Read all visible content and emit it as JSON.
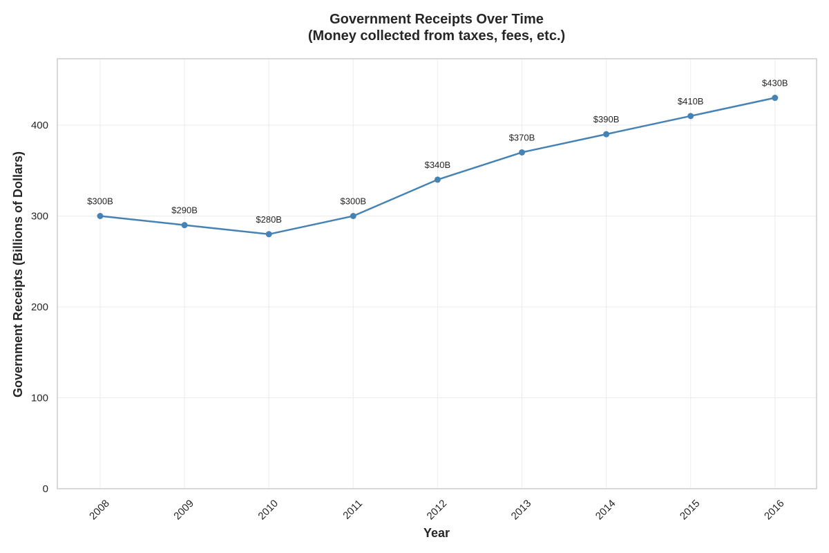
{
  "chart_data": {
    "type": "line",
    "title": "Government Receipts Over Time",
    "subtitle": "(Money collected from taxes, fees, etc.)",
    "xlabel": "Year",
    "ylabel": "Government Receipts (Billions of Dollars)",
    "categories": [
      "2008",
      "2009",
      "2010",
      "2011",
      "2012",
      "2013",
      "2014",
      "2015",
      "2016"
    ],
    "values": [
      300,
      290,
      280,
      300,
      340,
      370,
      390,
      410,
      430
    ],
    "data_labels": [
      "$300B",
      "$290B",
      "$280B",
      "$300B",
      "$340B",
      "$370B",
      "$390B",
      "$410B",
      "$430B"
    ],
    "yticks": [
      0,
      100,
      200,
      300,
      400
    ],
    "ytick_labels": [
      "0",
      "100",
      "200",
      "300",
      "400"
    ],
    "ylim": [
      0,
      473
    ],
    "grid": true,
    "legend": "none",
    "colors": {
      "line": "#4682b4",
      "grid": "#ebebeb",
      "frame": "#cccccc",
      "text": "#262626"
    }
  }
}
